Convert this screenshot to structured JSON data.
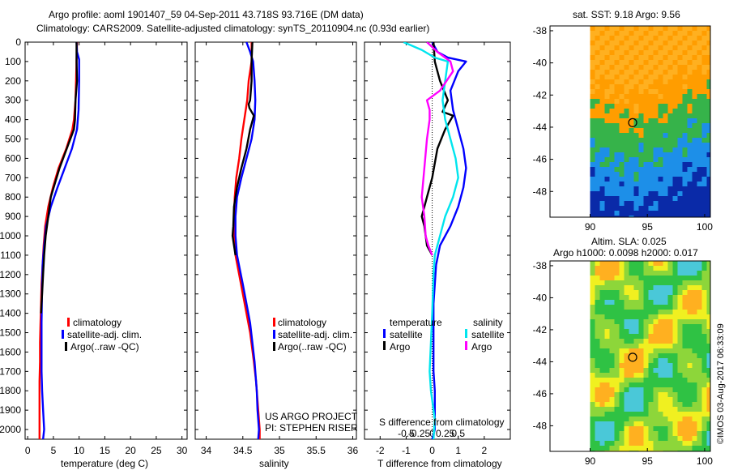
{
  "header": {
    "line1": "Argo profile: aoml 1901407_59 04-Sep-2011 43.718S 93.716E (DM data)",
    "line2": "Climatology: CARS2009. Satellite-adjusted climatology: synTS_20110904.nc (0.93d earlier)"
  },
  "chart_data": [
    {
      "type": "line",
      "id": "temperature",
      "xlabel": "temperature (deg C)",
      "ylabel": "",
      "xlim": [
        -0.5,
        31
      ],
      "ylim": [
        2050,
        0
      ],
      "y_reversed": true,
      "xticks": [
        0,
        5,
        10,
        15,
        20,
        25,
        30
      ],
      "yticks": [
        0,
        100,
        200,
        300,
        400,
        500,
        600,
        700,
        800,
        900,
        1000,
        1100,
        1200,
        1300,
        1400,
        1500,
        1600,
        1700,
        1800,
        1900,
        2000
      ],
      "legend": [
        "climatology",
        "satellite-adj. clim.",
        "Argo(..raw -QC)"
      ],
      "series": [
        {
          "name": "climatology",
          "color": "#ff0000",
          "x": [
            9.6,
            9.5,
            9.4,
            9.3,
            9.0,
            8.7,
            7.5,
            6.0,
            4.9,
            4.0,
            3.4,
            3.1,
            2.9,
            2.7,
            2.6,
            2.5,
            2.4,
            2.4,
            2.3,
            2.3,
            2.3,
            2.3
          ],
          "y": [
            0,
            100,
            200,
            300,
            400,
            450,
            550,
            650,
            750,
            850,
            950,
            1050,
            1150,
            1250,
            1350,
            1450,
            1550,
            1650,
            1750,
            1850,
            1950,
            2050
          ]
        },
        {
          "name": "satellite-adj. clim.",
          "color": "#0000ff",
          "x": [
            9.5,
            9.6,
            10.0,
            10.0,
            9.9,
            9.6,
            8.6,
            7.2,
            5.8,
            4.5,
            3.6,
            3.2,
            2.9,
            2.8,
            2.7,
            2.7,
            2.7,
            2.8,
            3.0,
            3.2,
            3.0
          ],
          "y": [
            0,
            50,
            90,
            200,
            350,
            450,
            550,
            650,
            750,
            850,
            950,
            1050,
            1150,
            1250,
            1450,
            1600,
            1700,
            1800,
            1900,
            2000,
            2050
          ]
        },
        {
          "name": "Argo(..raw -QC)",
          "color": "#000000",
          "x": [
            9.5,
            9.5,
            9.6,
            9.3,
            9.2,
            9.0,
            7.6,
            6.2,
            4.5,
            4.0,
            3.5,
            3.2,
            3.0,
            2.8,
            2.7,
            2.6
          ],
          "y": [
            0,
            100,
            200,
            300,
            400,
            450,
            550,
            650,
            800,
            900,
            1000,
            1100,
            1200,
            1300,
            1350,
            1400
          ]
        }
      ]
    },
    {
      "type": "line",
      "id": "salinity",
      "xlabel": "salinity",
      "ylabel": "",
      "xlim": [
        33.85,
        36.05
      ],
      "ylim": [
        2050,
        0
      ],
      "y_reversed": true,
      "xticks": [
        34,
        34.5,
        35,
        35.5,
        36
      ],
      "legend": [
        "climatology",
        "satellite-adj. clim.",
        "Argo(..raw -QC)"
      ],
      "series": [
        {
          "name": "climatology",
          "color": "#ff0000",
          "x": [
            34.62,
            34.62,
            34.6,
            34.58,
            34.57,
            34.56,
            34.52,
            34.48,
            34.45,
            34.41,
            34.39,
            34.38,
            34.38,
            34.4,
            34.5,
            34.6,
            34.65,
            34.68,
            34.7,
            34.72,
            34.73,
            34.73
          ],
          "y": [
            0,
            100,
            150,
            200,
            250,
            300,
            400,
            500,
            600,
            700,
            800,
            900,
            1000,
            1100,
            1300,
            1500,
            1650,
            1750,
            1850,
            1950,
            2000,
            2050
          ]
        },
        {
          "name": "satellite-adj. clim.",
          "color": "#0000ff",
          "x": [
            34.55,
            34.6,
            34.64,
            34.66,
            34.67,
            34.66,
            34.62,
            34.55,
            34.48,
            34.42,
            34.4,
            34.4,
            34.42,
            34.5,
            34.6,
            34.66,
            34.69,
            34.7,
            34.72,
            34.71
          ],
          "y": [
            0,
            50,
            100,
            200,
            300,
            400,
            500,
            600,
            700,
            800,
            900,
            1000,
            1100,
            1250,
            1450,
            1650,
            1800,
            1900,
            2000,
            2050
          ]
        },
        {
          "name": "Argo(..raw -QC)",
          "color": "#000000",
          "x": [
            34.63,
            34.62,
            34.62,
            34.6,
            34.58,
            34.59,
            34.65,
            34.6,
            34.55,
            34.48,
            34.42,
            34.38,
            34.37,
            34.36,
            34.38,
            34.4
          ],
          "y": [
            0,
            100,
            200,
            300,
            320,
            340,
            380,
            450,
            550,
            650,
            750,
            850,
            950,
            1000,
            1050,
            1100
          ]
        }
      ]
    },
    {
      "type": "line",
      "id": "difference",
      "xlabel": "T difference from climatology",
      "xlabel2": "S difference from climatology",
      "xlim": [
        -2.6,
        3.0
      ],
      "ylim": [
        2050,
        0
      ],
      "y_reversed": true,
      "xticks": [
        -2,
        -1,
        0,
        1,
        2
      ],
      "xticks2_labels": [
        "-0.5",
        "-0.25",
        "0",
        "0.25",
        "0.5"
      ],
      "legend_headers": [
        "temperature",
        "salinity"
      ],
      "legend": [
        "satellite",
        "Argo",
        "satellite",
        "Argo"
      ],
      "series": [
        {
          "name": "satellite",
          "color": "#0000ff",
          "x": [
            0,
            0.2,
            0.6,
            1.3,
            1.0,
            0.7,
            0.8,
            1.0,
            1.2,
            1.3,
            1.2,
            1.0,
            0.7,
            0.3,
            0.15,
            0.05,
            0.05,
            0.05,
            0.05,
            0.1,
            0.1,
            0.0
          ],
          "y": [
            0,
            50,
            80,
            100,
            150,
            250,
            350,
            450,
            550,
            650,
            750,
            850,
            950,
            1050,
            1150,
            1350,
            1500,
            1600,
            1700,
            1800,
            2000,
            2050
          ]
        },
        {
          "name": "Argo",
          "color": "#000000",
          "x": [
            0.05,
            0.1,
            0.3,
            0.6,
            0.5,
            0.4,
            0.8,
            0.5,
            0.2,
            0.0,
            -0.2,
            -0.3,
            -0.4,
            -0.3,
            -0.25,
            -0.2,
            0.0
          ],
          "y": [
            0,
            100,
            200,
            300,
            330,
            360,
            380,
            450,
            550,
            700,
            800,
            850,
            900,
            950,
            1000,
            1050,
            1100
          ]
        },
        {
          "name": "satellite",
          "color": "#00e5ee",
          "x": [
            -1.1,
            -0.4,
            0.1,
            0.6,
            0.5,
            0.4,
            0.5,
            0.7,
            0.9,
            1.0,
            0.8,
            0.5,
            0.3,
            0.1,
            0.05,
            0.0,
            -0.1,
            -0.05,
            0.1,
            0.05
          ],
          "y": [
            0,
            40,
            80,
            100,
            200,
            300,
            400,
            500,
            600,
            700,
            800,
            900,
            1000,
            1100,
            1200,
            1400,
            1700,
            1800,
            1950,
            2050
          ]
        },
        {
          "name": "Argo",
          "color": "#ff00ff",
          "x": [
            -0.2,
            0.2,
            0.7,
            0.8,
            0.3,
            -0.2,
            -0.1,
            -0.1,
            -0.2,
            -0.3,
            -0.4,
            -0.3,
            -0.25,
            -0.15,
            0.0
          ],
          "y": [
            0,
            50,
            100,
            150,
            250,
            300,
            350,
            400,
            500,
            650,
            800,
            900,
            1000,
            1050,
            1100
          ]
        }
      ]
    },
    {
      "type": "heatmap",
      "id": "sst_map",
      "title": "sat. SST: 9.18 Argo: 9.56",
      "xlim": [
        86.5,
        100.5
      ],
      "ylim": [
        -49.6,
        -37.7
      ],
      "xticks": [
        90,
        95,
        100
      ],
      "yticks": [
        -38,
        -40,
        -42,
        -44,
        -46,
        -48
      ],
      "argo_marker": {
        "lon": 93.716,
        "lat": -43.718
      },
      "palette": [
        "#ffb020",
        "#ff9d00",
        "#36b34a",
        "#1d8fe8",
        "#0a2aa8"
      ]
    },
    {
      "type": "heatmap",
      "id": "sla_map",
      "title": "Altim. SLA: 0.025",
      "subtitle": "Argo h1000: 0.0098 h2000: 0.017",
      "xlim": [
        86.5,
        100.5
      ],
      "ylim": [
        -49.6,
        -37.7
      ],
      "xticks": [
        90,
        95,
        100
      ],
      "yticks": [
        -38,
        -40,
        -42,
        -44,
        -46,
        -48
      ],
      "argo_marker": {
        "lon": 93.716,
        "lat": -43.718
      },
      "palette": [
        "#2fc244",
        "#8dd63a",
        "#f0f020",
        "#4ac8d8",
        "#ffb020"
      ]
    }
  ],
  "annotations": {
    "project_line1": "US ARGO PROJECT",
    "project_line2": "PI: STEPHEN RISER",
    "credit": "©IMOS 03-Aug-2017 06:33:09"
  }
}
